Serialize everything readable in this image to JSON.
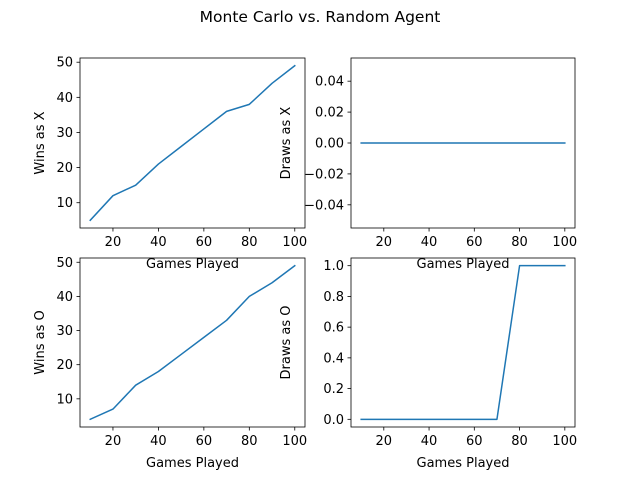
{
  "figure": {
    "title": "Monte Carlo vs. Random Agent"
  },
  "chart_data": [
    {
      "type": "line",
      "xlabel": "Games Played",
      "ylabel": "Wins as X",
      "xlim": [
        5.5,
        104.5
      ],
      "ylim": [
        2.8,
        51.2
      ],
      "xticks": [
        20,
        40,
        60,
        80,
        100
      ],
      "yticks": [
        10,
        20,
        30,
        40,
        50
      ],
      "ytick_labels": [
        "10",
        "20",
        "30",
        "40",
        "50"
      ],
      "grid": false,
      "series": [
        {
          "color": "#1f77b4",
          "x": [
            10,
            20,
            30,
            40,
            50,
            60,
            70,
            80,
            90,
            100
          ],
          "y": [
            5,
            12,
            15,
            21,
            26,
            31,
            36,
            38,
            44,
            49
          ]
        }
      ]
    },
    {
      "type": "line",
      "xlabel": "Games Played",
      "ylabel": "Draws as X",
      "xlim": [
        5.5,
        104.5
      ],
      "ylim": [
        -0.055,
        0.055
      ],
      "xticks": [
        20,
        40,
        60,
        80,
        100
      ],
      "yticks": [
        -0.04,
        -0.02,
        0.0,
        0.02,
        0.04
      ],
      "ytick_labels": [
        "−0.04",
        "−0.02",
        "0.00",
        "0.02",
        "0.04"
      ],
      "grid": false,
      "series": [
        {
          "color": "#1f77b4",
          "x": [
            10,
            20,
            30,
            40,
            50,
            60,
            70,
            80,
            90,
            100
          ],
          "y": [
            0,
            0,
            0,
            0,
            0,
            0,
            0,
            0,
            0,
            0
          ]
        }
      ]
    },
    {
      "type": "line",
      "xlabel": "Games Played",
      "ylabel": "Wins as O",
      "xlim": [
        5.5,
        104.5
      ],
      "ylim": [
        1.75,
        51.25
      ],
      "xticks": [
        20,
        40,
        60,
        80,
        100
      ],
      "yticks": [
        10,
        20,
        30,
        40,
        50
      ],
      "ytick_labels": [
        "10",
        "20",
        "30",
        "40",
        "50"
      ],
      "grid": false,
      "series": [
        {
          "color": "#1f77b4",
          "x": [
            10,
            20,
            30,
            40,
            50,
            60,
            70,
            80,
            90,
            100
          ],
          "y": [
            4,
            7,
            14,
            18,
            23,
            28,
            33,
            40,
            44,
            49
          ]
        }
      ]
    },
    {
      "type": "line",
      "xlabel": "Games Played",
      "ylabel": "Draws as O",
      "xlim": [
        5.5,
        104.5
      ],
      "ylim": [
        -0.05,
        1.05
      ],
      "xticks": [
        20,
        40,
        60,
        80,
        100
      ],
      "yticks": [
        0.0,
        0.2,
        0.4,
        0.6,
        0.8,
        1.0
      ],
      "ytick_labels": [
        "0.0",
        "0.2",
        "0.4",
        "0.6",
        "0.8",
        "1.0"
      ],
      "grid": false,
      "series": [
        {
          "color": "#1f77b4",
          "x": [
            10,
            20,
            30,
            40,
            50,
            60,
            70,
            80,
            90,
            100
          ],
          "y": [
            0,
            0,
            0,
            0,
            0,
            0,
            0,
            1,
            1,
            1
          ]
        }
      ]
    }
  ]
}
